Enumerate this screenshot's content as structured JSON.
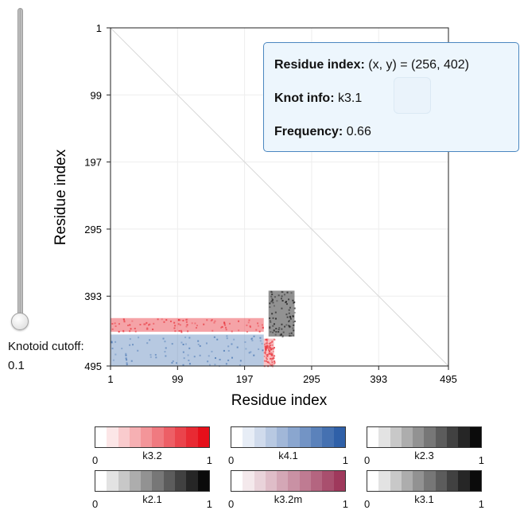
{
  "chart_data": {
    "type": "heatmap",
    "title": "",
    "xlabel": "Residue index",
    "ylabel": "Residue index",
    "xlim": [
      1,
      495
    ],
    "ylim": [
      1,
      495
    ],
    "x_ticks": [
      "1",
      "99",
      "197",
      "295",
      "393",
      "495"
    ],
    "y_ticks": [
      "1",
      "99",
      "197",
      "295",
      "393",
      "495"
    ],
    "grid": true,
    "regions": [
      {
        "knot": "k3.2",
        "color": "#e8343c",
        "x_range": [
          1,
          225
        ],
        "y_range": [
          425,
          445
        ],
        "frequency": 0.6
      },
      {
        "knot": "k3.2",
        "color": "#e8343c",
        "x_range": [
          225,
          240
        ],
        "y_range": [
          455,
          495
        ],
        "frequency": 0.4
      },
      {
        "knot": "k4.1",
        "color": "#4f7bb5",
        "x_range": [
          1,
          225
        ],
        "y_range": [
          449,
          495
        ],
        "frequency": 0.55
      },
      {
        "knot": "k3.1",
        "color": "#222222",
        "x_range": [
          232,
          270
        ],
        "y_range": [
          385,
          452
        ],
        "frequency": 0.66
      }
    ]
  },
  "slider": {
    "label": "Knotoid cutoff:",
    "value": "0.1"
  },
  "tooltip": {
    "residue_label": "Residue index:",
    "residue_value": "(x, y) = (256, 402)",
    "knot_label": "Knot info:",
    "knot_value": "k3.1",
    "frequency_label": "Frequency:",
    "frequency_value": "0.66"
  },
  "colorbars": [
    {
      "name": "k3.2",
      "min": "0",
      "max": "1",
      "colors": [
        "#ffffff",
        "#fce6e7",
        "#f9cbcd",
        "#f6b0b3",
        "#f39599",
        "#f07a80",
        "#ed5f66",
        "#ea444c",
        "#e82a33",
        "#e60f1a"
      ]
    },
    {
      "name": "k4.1",
      "min": "0",
      "max": "1",
      "colors": [
        "#ffffff",
        "#e7edf6",
        "#d0dbec",
        "#b8c9e2",
        "#a1b7d8",
        "#8aa6cf",
        "#7394c5",
        "#5b82bb",
        "#4571b1",
        "#2f60a8"
      ]
    },
    {
      "name": "k2.3",
      "min": "0",
      "max": "1",
      "colors": [
        "#ffffff",
        "#e3e3e3",
        "#c8c8c8",
        "#adadad",
        "#929292",
        "#777777",
        "#5c5c5c",
        "#414141",
        "#262626",
        "#0b0b0b"
      ]
    },
    {
      "name": "k2.1",
      "min": "0",
      "max": "1",
      "colors": [
        "#ffffff",
        "#e3e3e3",
        "#c8c8c8",
        "#adadad",
        "#929292",
        "#777777",
        "#5c5c5c",
        "#414141",
        "#262626",
        "#0b0b0b"
      ]
    },
    {
      "name": "k3.2m",
      "min": "0",
      "max": "1",
      "colors": [
        "#ffffff",
        "#f4e9ec",
        "#e9d3da",
        "#dfbdc8",
        "#d4a7b6",
        "#c991a4",
        "#bf7b92",
        "#b46580",
        "#a94f6e",
        "#9f395c"
      ]
    },
    {
      "name": "k3.1",
      "min": "0",
      "max": "1",
      "colors": [
        "#ffffff",
        "#e3e3e3",
        "#c8c8c8",
        "#adadad",
        "#929292",
        "#777777",
        "#5c5c5c",
        "#414141",
        "#262626",
        "#0b0b0b"
      ]
    }
  ]
}
